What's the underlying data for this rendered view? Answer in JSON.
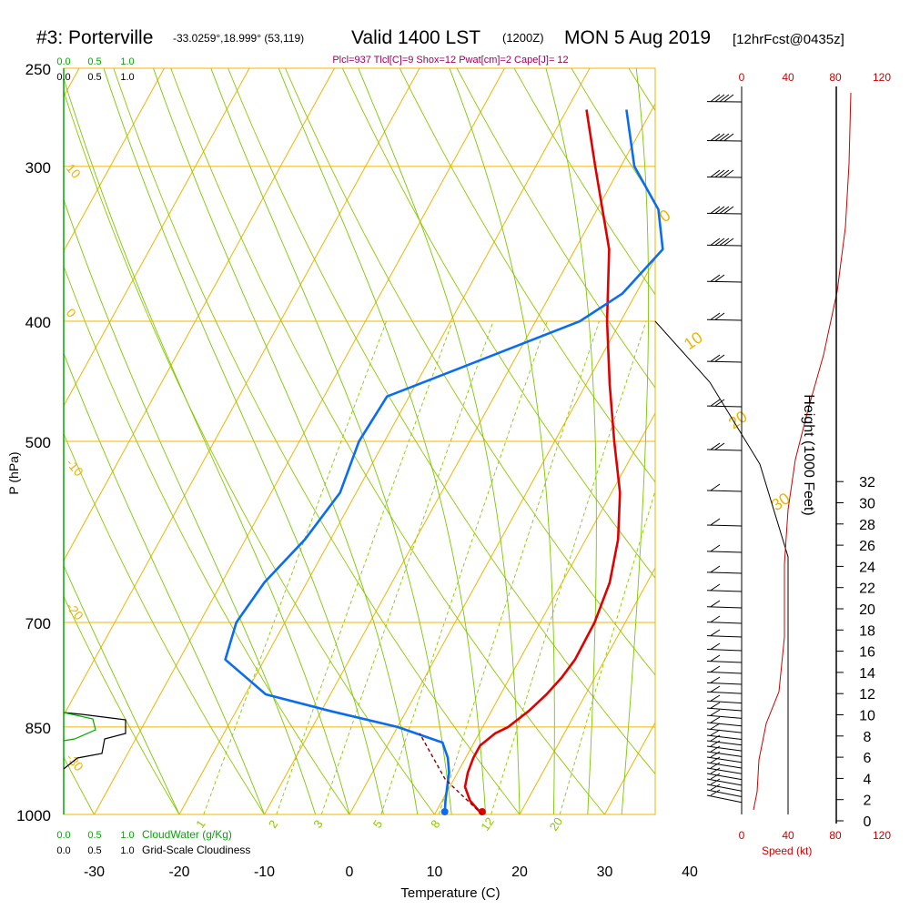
{
  "header": {
    "station": "#3: Porterville",
    "coords": "-33.0259°,18.999° (53,119)",
    "valid_main": "Valid 1400 LST",
    "valid_utc": "(1200Z)",
    "date": "MON 5 Aug 2019",
    "forecast": "[12hrFcst@0435z]"
  },
  "indices_line": "Plcl=937 Tlcl[C]=9 Shox=12 Pwat[cm]=2 Cape[J]= 12",
  "cloud_axes": {
    "cloudwater_ticks": [
      "0.0",
      "0.5",
      "1.0"
    ],
    "cloudiness_ticks": [
      "0.0",
      "0.5",
      "1.0"
    ],
    "cloudwater_label": "CloudWater (g/Kg)",
    "cloudiness_label": "Grid-Scale Cloudiness"
  },
  "speed_axis": {
    "label": "Speed (kt)",
    "ticks": [
      "0",
      "40",
      "80",
      "120"
    ]
  },
  "height_axis": {
    "label": "Height (1000 Feet)",
    "ticks": [
      "0",
      "2",
      "4",
      "6",
      "8",
      "10",
      "12",
      "14",
      "16",
      "18",
      "20",
      "22",
      "24",
      "26",
      "28",
      "30",
      "32"
    ]
  },
  "colors": {
    "temperature": "#e00000",
    "dewpoint": "#0a6cf0",
    "isobar": "#f0b400",
    "isotherm": "#f0b400",
    "dry_adiabat": "#8cc800",
    "moist_adiabat": "#78c800",
    "mixing_ratio": "#8cc800",
    "cloudwater": "#00aa00",
    "speed": "#cc0000",
    "indices": "#a0005a"
  },
  "chart_data": {
    "type": "line",
    "title": "",
    "xlabel": "Temperature (C)",
    "ylabel": "P (hPa)",
    "x_ticks": [
      "-30",
      "-20",
      "-10",
      "0",
      "10",
      "20",
      "30",
      "40"
    ],
    "y_ticks": [
      "250",
      "300",
      "400",
      "500",
      "700",
      "850",
      "1000"
    ],
    "pressure_range": [
      1000,
      250
    ],
    "isotherm_labels": [
      "10",
      "0",
      "-10",
      "-20",
      "-30",
      "0",
      "10",
      "20",
      "30"
    ],
    "mixing_ratio_labels": [
      "1",
      "2",
      "3",
      "5",
      "8",
      "12",
      "20"
    ],
    "series": [
      {
        "key": "temperature",
        "points": [
          {
            "p": 1000,
            "t": 15.6
          },
          {
            "p": 975,
            "t": 13.3
          },
          {
            "p": 950,
            "t": 11.8
          },
          {
            "p": 925,
            "t": 11.2
          },
          {
            "p": 900,
            "t": 10.9
          },
          {
            "p": 880,
            "t": 10.9
          },
          {
            "p": 860,
            "t": 11.9
          },
          {
            "p": 850,
            "t": 13.0
          },
          {
            "p": 825,
            "t": 14.4
          },
          {
            "p": 800,
            "t": 15.4
          },
          {
            "p": 775,
            "t": 16.1
          },
          {
            "p": 750,
            "t": 16.5
          },
          {
            "p": 700,
            "t": 16.4
          },
          {
            "p": 650,
            "t": 15.6
          },
          {
            "p": 600,
            "t": 13.8
          },
          {
            "p": 550,
            "t": 11.0
          },
          {
            "p": 500,
            "t": 7.0
          },
          {
            "p": 450,
            "t": 2.8
          },
          {
            "p": 400,
            "t": -1.6
          },
          {
            "p": 350,
            "t": -6.0
          },
          {
            "p": 300,
            "t": -13.0
          },
          {
            "p": 270,
            "t": -17.7
          }
        ]
      },
      {
        "key": "dewpoint",
        "points": [
          {
            "p": 1000,
            "t": 11.2
          },
          {
            "p": 975,
            "t": 10.4
          },
          {
            "p": 950,
            "t": 9.7
          },
          {
            "p": 925,
            "t": 9.0
          },
          {
            "p": 900,
            "t": 7.9
          },
          {
            "p": 875,
            "t": 6.3
          },
          {
            "p": 850,
            "t": 0.0
          },
          {
            "p": 825,
            "t": -9.0
          },
          {
            "p": 800,
            "t": -17.6
          },
          {
            "p": 750,
            "t": -24.6
          },
          {
            "p": 700,
            "t": -25.7
          },
          {
            "p": 650,
            "t": -25.0
          },
          {
            "p": 600,
            "t": -23.0
          },
          {
            "p": 550,
            "t": -21.9
          },
          {
            "p": 500,
            "t": -23.0
          },
          {
            "p": 460,
            "t": -22.6
          },
          {
            "p": 430,
            "t": -14.0
          },
          {
            "p": 400,
            "t": -4.8
          },
          {
            "p": 380,
            "t": -1.6
          },
          {
            "p": 350,
            "t": 0.3
          },
          {
            "p": 325,
            "t": -2.8
          },
          {
            "p": 300,
            "t": -8.4
          },
          {
            "p": 270,
            "t": -13.0
          }
        ]
      },
      {
        "key": "parcel",
        "points": [
          {
            "p": 1000,
            "t": 15.6
          },
          {
            "p": 937,
            "t": 9.0
          },
          {
            "p": 860,
            "t": 3.0
          }
        ]
      }
    ]
  }
}
